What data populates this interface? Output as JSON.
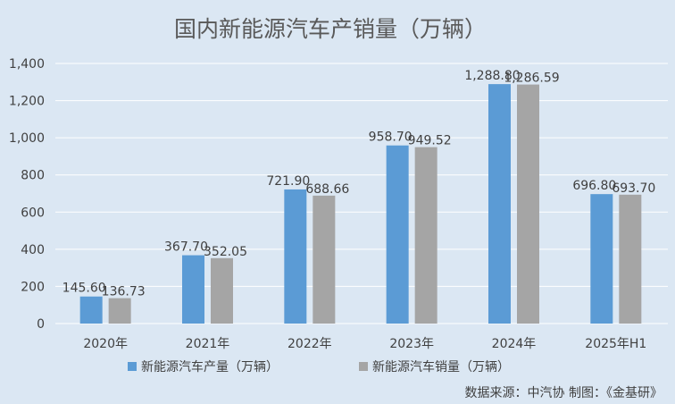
{
  "chart_data": {
    "type": "bar",
    "title": "国内新能源汽车产销量（万辆）",
    "categories": [
      "2020年",
      "2021年",
      "2022年",
      "2023年",
      "2024年",
      "2025年H1"
    ],
    "series": [
      {
        "name": "新能源汽车产量（万辆）",
        "values": [
          145.6,
          367.7,
          721.9,
          958.7,
          1288.8,
          696.8
        ],
        "labels": [
          "145.60",
          "367.70",
          "721.90",
          "958.70",
          "1,288.80",
          "696.80"
        ],
        "color": "#5b9bd5"
      },
      {
        "name": "新能源汽车销量（万辆）",
        "values": [
          136.73,
          352.05,
          688.66,
          949.52,
          1286.59,
          693.7
        ],
        "labels": [
          "136.73",
          "352.05",
          "688.66",
          "949.52",
          "1,286.59",
          "693.70"
        ],
        "color": "#a5a5a5"
      }
    ],
    "ylim": [
      0,
      1400
    ],
    "yticks": [
      0,
      200,
      400,
      600,
      800,
      1000,
      1200,
      1400
    ],
    "ytick_labels": [
      "0",
      "200",
      "400",
      "600",
      "800",
      "1,000",
      "1,200",
      "1,400"
    ],
    "grid": true,
    "legend": "bottom",
    "xlabel": "",
    "ylabel": ""
  },
  "source": "数据来源：中汽协  制图：《金基研》",
  "colors": {
    "background": "#dbe7f3",
    "grid": "#ffffff"
  }
}
